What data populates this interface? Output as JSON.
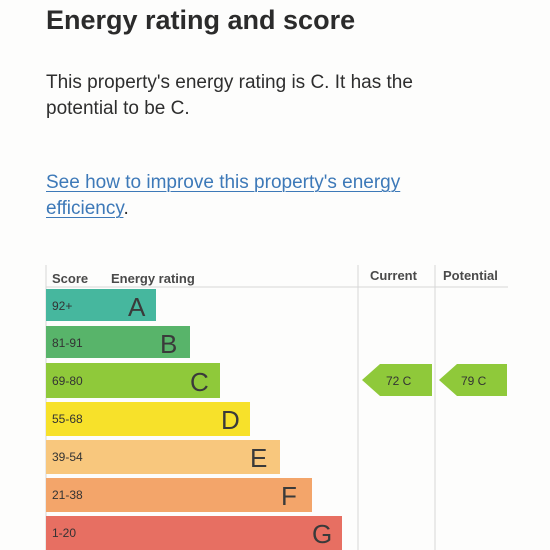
{
  "heading": "Energy rating and score",
  "summary": {
    "line1": "This property's energy rating is C. It has the",
    "line2": "potential to be C."
  },
  "improve": {
    "link_line1": "See how to improve this property's energy",
    "link_line2": "efficiency",
    "trailing": "."
  },
  "chart": {
    "headers": {
      "score": "Score",
      "rating": "Energy rating",
      "current": "Current",
      "potential": "Potential"
    },
    "bands": [
      {
        "range": "92+",
        "letter": "A",
        "color": "#46b79e"
      },
      {
        "range": "81-91",
        "letter": "B",
        "color": "#58b46a"
      },
      {
        "range": "69-80",
        "letter": "C",
        "color": "#8fc93a"
      },
      {
        "range": "55-68",
        "letter": "D",
        "color": "#f7e12a"
      },
      {
        "range": "39-54",
        "letter": "E",
        "color": "#f8c77d"
      },
      {
        "range": "21-38",
        "letter": "F",
        "color": "#f3a56a"
      },
      {
        "range": "1-20",
        "letter": "G",
        "color": "#e76f62"
      }
    ],
    "current": {
      "label": "72 C",
      "score": 72,
      "band": "C",
      "color": "#8fc93a"
    },
    "potential": {
      "label": "79 C",
      "score": 79,
      "band": "C",
      "color": "#8fc93a"
    }
  }
}
